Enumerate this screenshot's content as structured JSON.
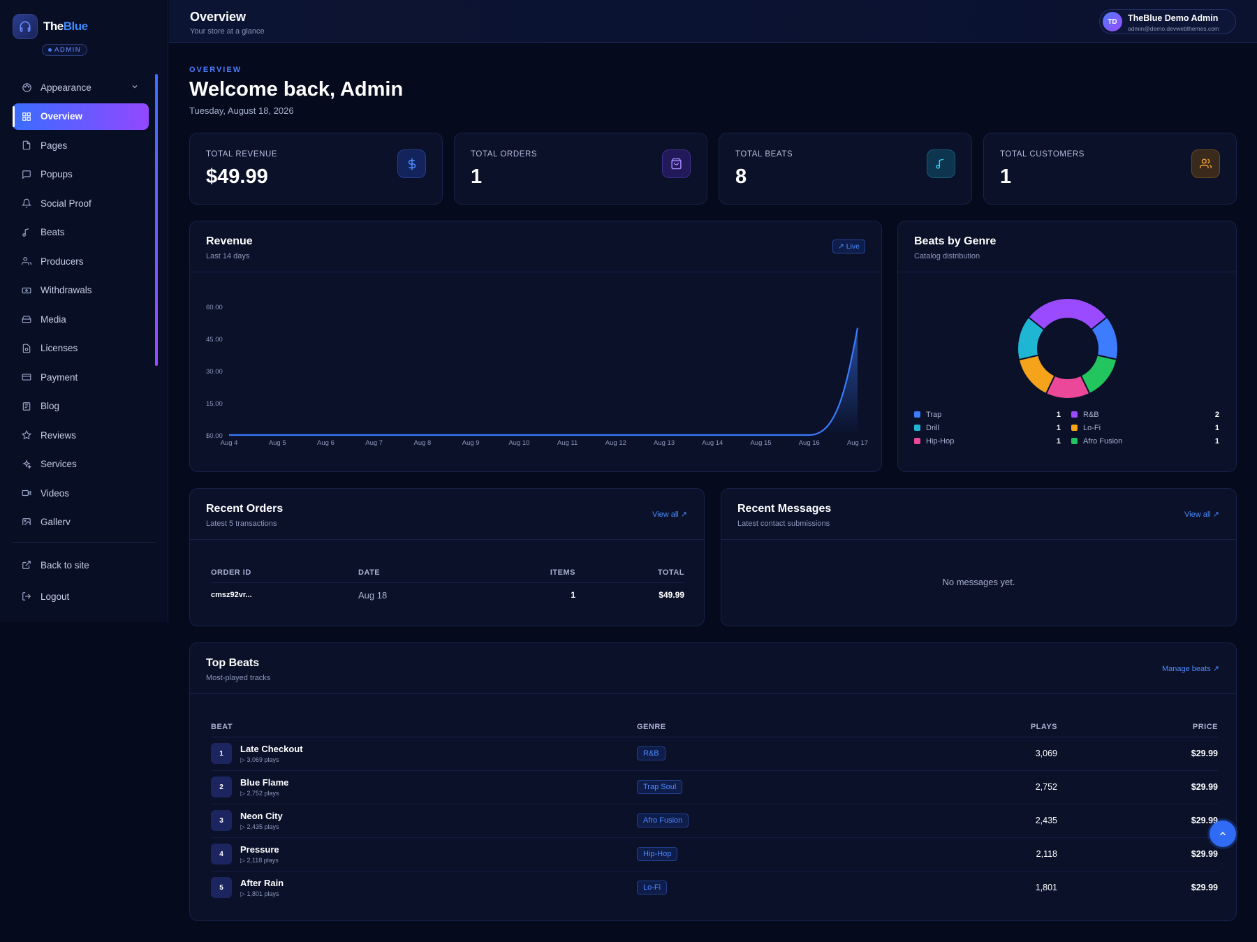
{
  "brand": {
    "name_1": "The",
    "name_2": "Blue",
    "badge": "ADMIN"
  },
  "nav": {
    "appearance": "Appearance",
    "items": [
      "Overview",
      "Pages",
      "Popups",
      "Social Proof",
      "Beats",
      "Producers",
      "Withdrawals",
      "Media",
      "Licenses",
      "Payment",
      "Blog",
      "Reviews",
      "Services",
      "Videos",
      "Gallery"
    ],
    "back": "Back to site",
    "logout": "Logout"
  },
  "topbar": {
    "title": "Overview",
    "subtitle": "Your store at a glance",
    "user_initials": "TD",
    "user_name": "TheBlue Demo Admin",
    "user_email": "admin@demo.devwebthemes.com"
  },
  "header": {
    "section": "OVERVIEW",
    "welcome": "Welcome back, Admin",
    "date": "Tuesday, August 18, 2026"
  },
  "stats": [
    {
      "label": "TOTAL REVENUE",
      "value": "$49.99",
      "icon": "dollar-icon",
      "color": "#3d7bff"
    },
    {
      "label": "TOTAL ORDERS",
      "value": "1",
      "icon": "shopping-bag-icon",
      "color": "#9a6bff"
    },
    {
      "label": "TOTAL BEATS",
      "value": "8",
      "icon": "music-note-icon",
      "color": "#1fb6d4"
    },
    {
      "label": "TOTAL CUSTOMERS",
      "value": "1",
      "icon": "users-icon",
      "color": "#f5a33a"
    }
  ],
  "revenue": {
    "title": "Revenue",
    "subtitle": "Last 14 days",
    "badge": "Live"
  },
  "chart_data": [
    {
      "type": "area",
      "x": [
        "Aug 4",
        "Aug 5",
        "Aug 6",
        "Aug 7",
        "Aug 8",
        "Aug 9",
        "Aug 10",
        "Aug 11",
        "Aug 12",
        "Aug 13",
        "Aug 14",
        "Aug 15",
        "Aug 16",
        "Aug 17"
      ],
      "series": [
        {
          "values": [
            0,
            0,
            0,
            0,
            0,
            0,
            0,
            0,
            0,
            0,
            0,
            0,
            0,
            49.99
          ]
        }
      ],
      "yticks": [
        "60.00",
        "45.00",
        "30.00",
        "15.00",
        "$0.00"
      ],
      "ylim": [
        0,
        60
      ],
      "color": "#3d7bff"
    },
    {
      "type": "pie",
      "title": "Beats by Genre",
      "subtitle": "Catalog distribution",
      "categories": [
        "Trap",
        "R&B",
        "Drill",
        "Lo-Fi",
        "Hip-Hop",
        "Afro Fusion"
      ],
      "values": [
        1,
        2,
        1,
        1,
        1,
        1
      ],
      "colors": [
        "#3d7bff",
        "#9a4bff",
        "#1fb6d4",
        "#f5a31a",
        "#ec4899",
        "#22c55e"
      ]
    }
  ],
  "orders": {
    "title": "Recent Orders",
    "subtitle": "Latest 5 transactions",
    "view_all": "View all",
    "headers": [
      "ORDER ID",
      "DATE",
      "ITEMS",
      "TOTAL"
    ],
    "rows": [
      [
        "cmsz92vr...",
        "Aug 18",
        "1",
        "$49.99"
      ]
    ]
  },
  "messages": {
    "title": "Recent Messages",
    "subtitle": "Latest contact submissions",
    "view_all": "View all",
    "empty": "No messages yet."
  },
  "top_beats": {
    "title": "Top Beats",
    "subtitle": "Most-played tracks",
    "manage": "Manage beats",
    "headers": [
      "BEAT",
      "GENRE",
      "PLAYS",
      "PRICE"
    ],
    "rows": [
      {
        "rank": "1",
        "name": "Late Checkout",
        "plays_sub": "3,069 plays",
        "genre": "R&B",
        "plays": "3,069",
        "price": "$29.99"
      },
      {
        "rank": "2",
        "name": "Blue Flame",
        "plays_sub": "2,752 plays",
        "genre": "Trap Soul",
        "plays": "2,752",
        "price": "$29.99"
      },
      {
        "rank": "3",
        "name": "Neon City",
        "plays_sub": "2,435 plays",
        "genre": "Afro Fusion",
        "plays": "2,435",
        "price": "$29.99"
      },
      {
        "rank": "4",
        "name": "Pressure",
        "plays_sub": "2,118 plays",
        "genre": "Hip-Hop",
        "plays": "2,118",
        "price": "$29.99"
      },
      {
        "rank": "5",
        "name": "After Rain",
        "plays_sub": "1,801 plays",
        "genre": "Lo-Fi",
        "plays": "1,801",
        "price": "$29.99"
      }
    ]
  }
}
